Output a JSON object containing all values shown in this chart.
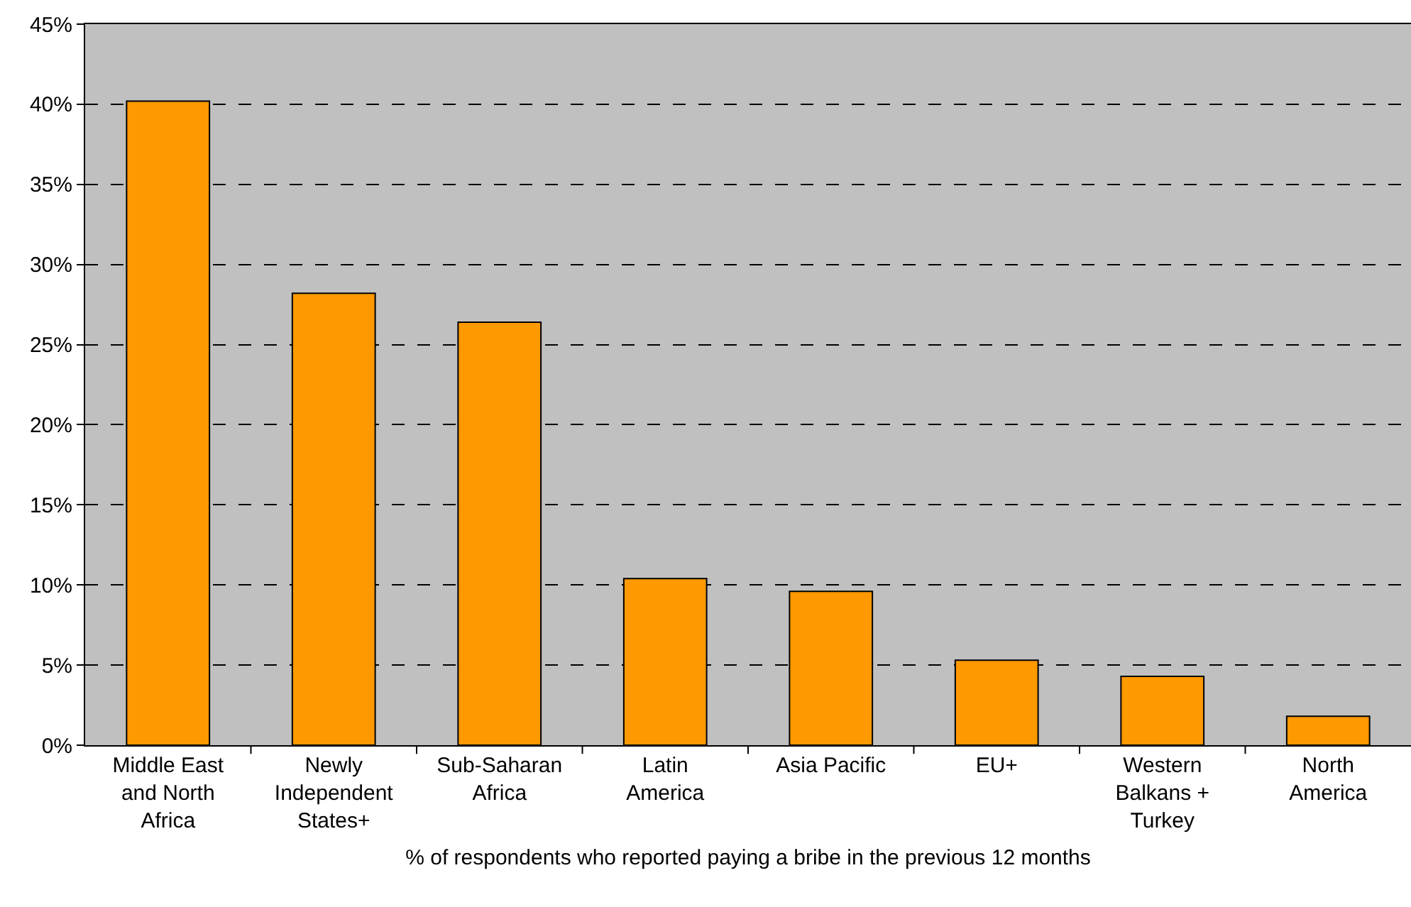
{
  "chart_data": {
    "type": "bar",
    "xlabel": "% of respondents who reported paying a bribe in the previous 12 months",
    "categories": [
      "Middle East and North Africa",
      "Newly Independent States+",
      "Sub-Saharan Africa",
      "Latin America",
      "Asia Pacific",
      "EU+",
      "Western Balkans + Turkey",
      "North America"
    ],
    "values": [
      40.2,
      28.2,
      26.4,
      10.4,
      9.6,
      5.3,
      4.3,
      1.8
    ],
    "color": "#ff9900",
    "ylim": [
      0,
      45
    ],
    "yticks": [
      {
        "value": 0,
        "label": "0%"
      },
      {
        "value": 5,
        "label": "5%"
      },
      {
        "value": 10,
        "label": "10%"
      },
      {
        "value": 15,
        "label": "15%"
      },
      {
        "value": 20,
        "label": "20%"
      },
      {
        "value": 25,
        "label": "25%"
      },
      {
        "value": 30,
        "label": "30%"
      },
      {
        "value": 35,
        "label": "35%"
      },
      {
        "value": 40,
        "label": "40%"
      },
      {
        "value": 45,
        "label": "45%"
      }
    ],
    "grid": "y",
    "line_style": "dashed"
  }
}
